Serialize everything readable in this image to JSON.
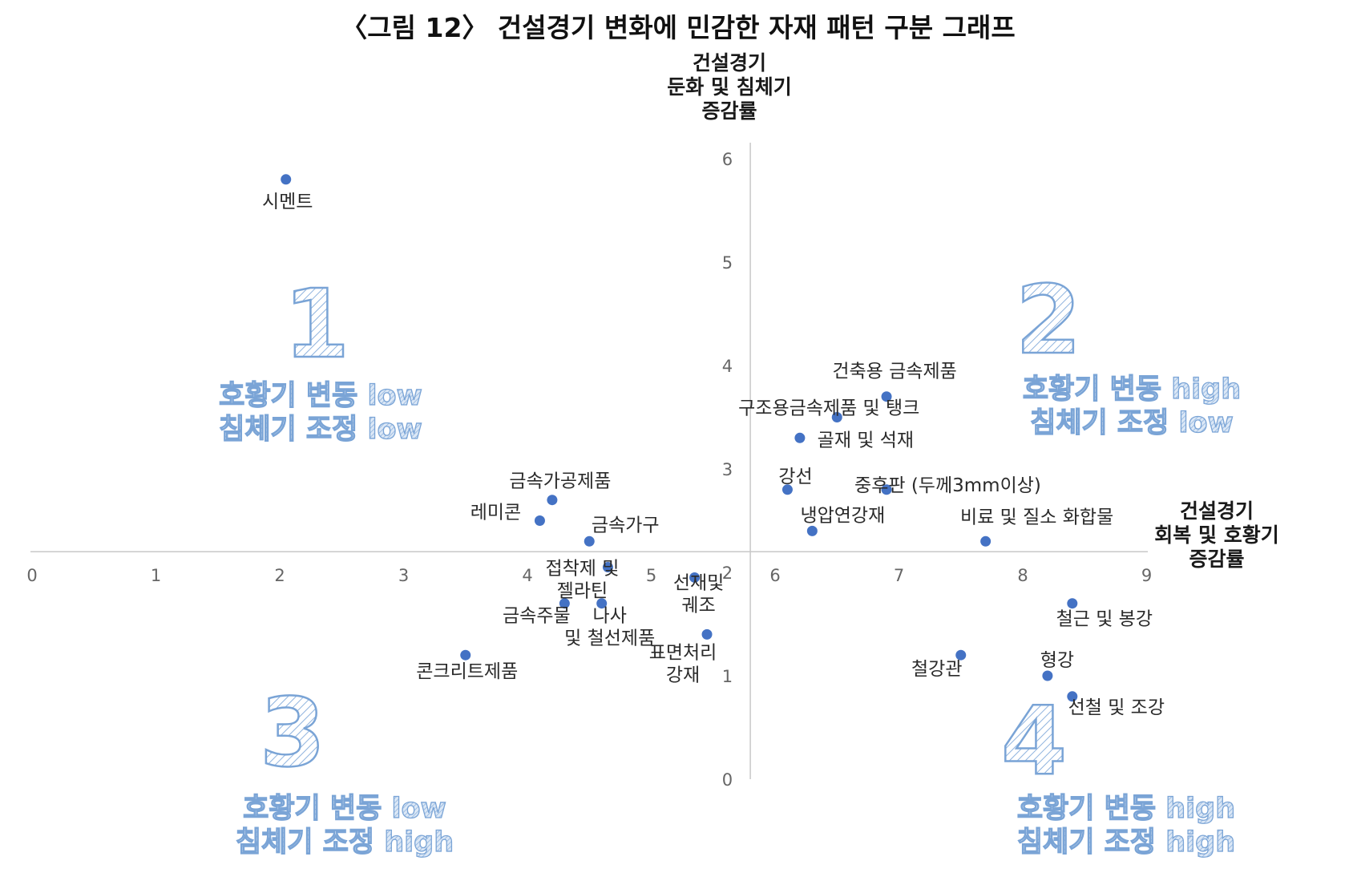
{
  "chart_data": {
    "type": "scatter",
    "title": "〈그림 12〉 건설경기 변화에 민감한 자재 패턴 구분 그래프",
    "ylabel": [
      "건설경기",
      "둔화 및 침체기",
      "증감률"
    ],
    "xlabel": [
      "건설경기",
      "회복 및 호황기",
      "증감률"
    ],
    "xlim": [
      0,
      9
    ],
    "ylim": [
      0,
      6
    ],
    "x_ticks": [
      "0",
      "1",
      "2",
      "3",
      "4",
      "5",
      "6",
      "7",
      "8",
      "9"
    ],
    "y_ticks": [
      "0",
      "1",
      "2",
      "3",
      "4",
      "5",
      "6"
    ],
    "crossing": {
      "x": 5.8,
      "y": 2.2
    },
    "grid": false,
    "marker_color": "#4472c4",
    "points": [
      {
        "label": [
          "시멘트"
        ],
        "x": 2.05,
        "y": 5.8
      },
      {
        "label": [
          "건축용 금속제품"
        ],
        "x": 6.9,
        "y": 3.7
      },
      {
        "label": [
          "구조용금속제품 및 탱크"
        ],
        "x": 6.5,
        "y": 3.5
      },
      {
        "label": [
          "골재 및 석재"
        ],
        "x": 6.2,
        "y": 3.3
      },
      {
        "label": [
          "강선"
        ],
        "x": 6.1,
        "y": 2.8
      },
      {
        "label": [
          "중후판 (두께3mm이상)"
        ],
        "x": 6.9,
        "y": 2.8
      },
      {
        "label": [
          "냉압연강재"
        ],
        "x": 6.3,
        "y": 2.4
      },
      {
        "label": [
          "비료 및 질소 화합물"
        ],
        "x": 7.7,
        "y": 2.3
      },
      {
        "label": [
          "금속가공제품"
        ],
        "x": 4.2,
        "y": 2.7
      },
      {
        "label": [
          "레미콘"
        ],
        "x": 4.1,
        "y": 2.5
      },
      {
        "label": [
          "금속가구"
        ],
        "x": 4.5,
        "y": 2.3
      },
      {
        "label": [
          "접착제 및",
          "젤라틴"
        ],
        "x": 4.65,
        "y": 2.05
      },
      {
        "label": [
          "선재및",
          "궤조"
        ],
        "x": 5.35,
        "y": 1.95
      },
      {
        "label": [
          "금속주물"
        ],
        "x": 4.3,
        "y": 1.7
      },
      {
        "label": [
          "나사",
          "및 철선제품"
        ],
        "x": 4.6,
        "y": 1.7
      },
      {
        "label": [
          "표면처리",
          "강재"
        ],
        "x": 5.45,
        "y": 1.4
      },
      {
        "label": [
          "콘크리트제품"
        ],
        "x": 3.5,
        "y": 1.2
      },
      {
        "label": [
          "철근 및 봉강"
        ],
        "x": 8.4,
        "y": 1.7
      },
      {
        "label": [
          "철강관"
        ],
        "x": 7.5,
        "y": 1.2
      },
      {
        "label": [
          "형강"
        ],
        "x": 8.2,
        "y": 1.0
      },
      {
        "label": [
          "선철 및 조강"
        ],
        "x": 8.4,
        "y": 0.8
      }
    ],
    "quadrants": [
      {
        "number": "1",
        "lines": [
          "호황기 변동 low",
          "침체기 조정 low"
        ]
      },
      {
        "number": "2",
        "lines": [
          "호황기 변동 high",
          "침체기 조정 low"
        ]
      },
      {
        "number": "3",
        "lines": [
          "호황기 변동 low",
          "침체기 조정 high"
        ]
      },
      {
        "number": "4",
        "lines": [
          "호황기 변동  high",
          "침체기 조정 high"
        ]
      }
    ]
  }
}
